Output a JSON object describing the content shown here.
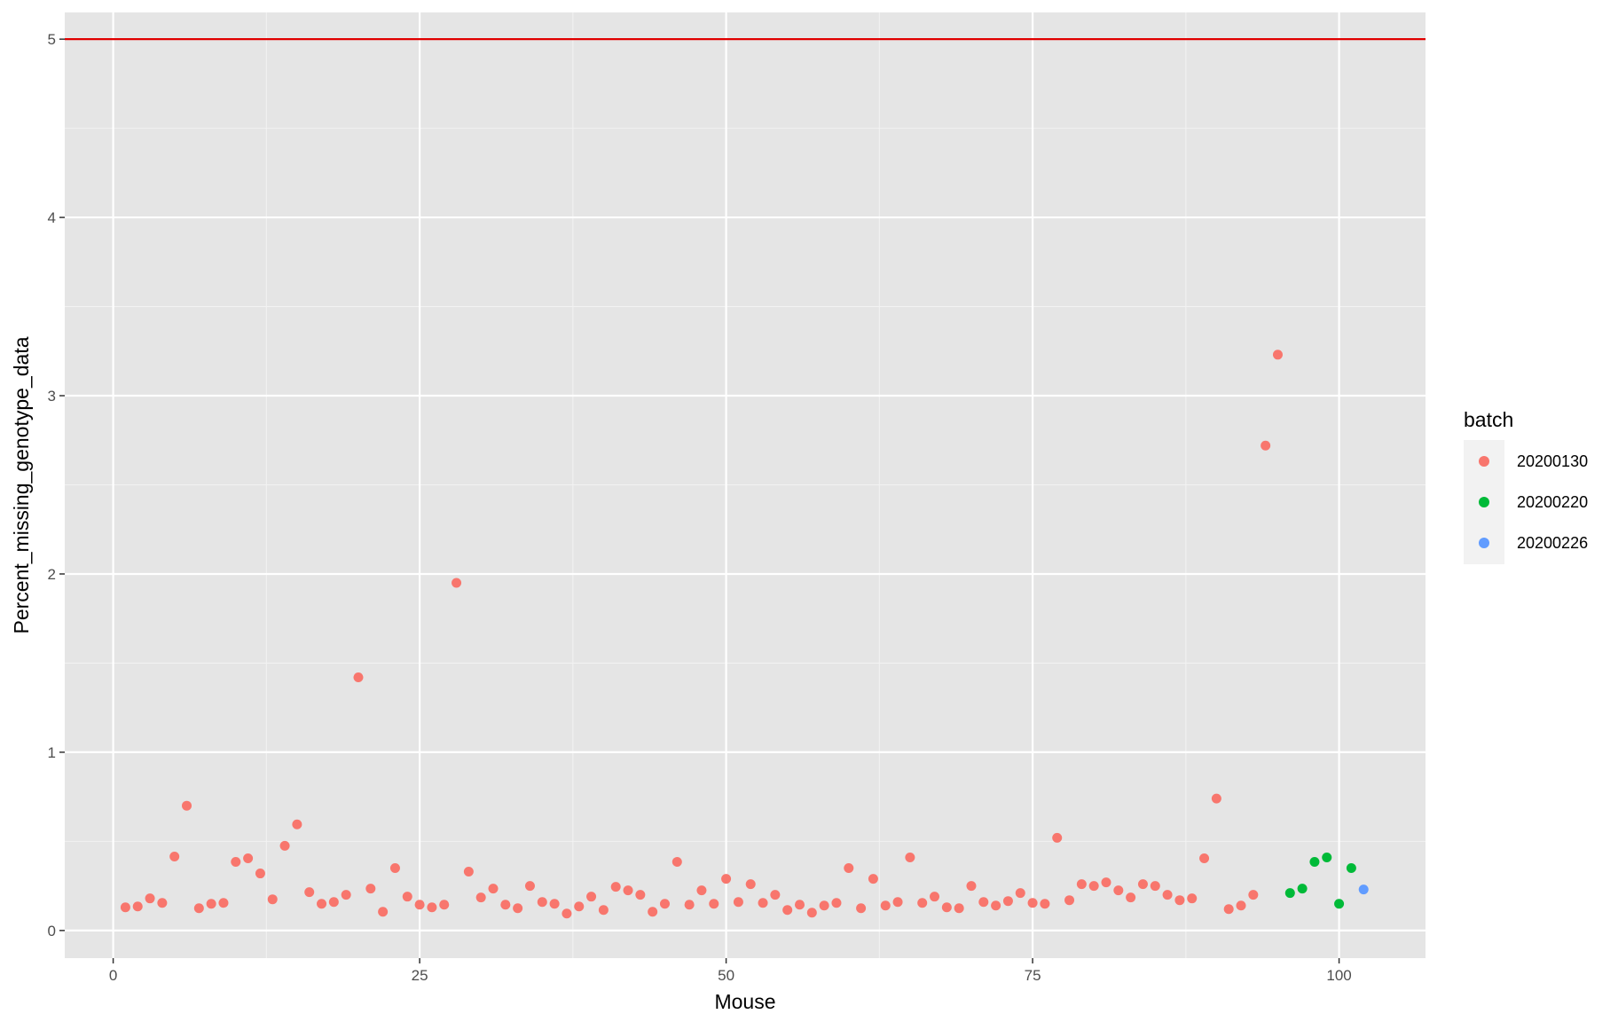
{
  "chart_data": {
    "type": "scatter",
    "xlabel": "Mouse",
    "ylabel": "Percent_missing_genotype_data",
    "xlim": [
      -3.95,
      107.05
    ],
    "ylim": [
      -0.155,
      5.15
    ],
    "x_ticks": [
      0,
      25,
      50,
      75,
      100
    ],
    "y_ticks": [
      0,
      1,
      2,
      3,
      4,
      5
    ],
    "x_tick_labels": [
      "0",
      "25",
      "50",
      "75",
      "100"
    ],
    "y_tick_labels": [
      "0",
      "1",
      "2",
      "3",
      "4",
      "5"
    ],
    "grid": true,
    "hline": {
      "y": 5,
      "color": "#e00000"
    },
    "legend": {
      "title": "batch",
      "position": "right"
    },
    "series": [
      {
        "name": "20200130",
        "color": "#f8766d",
        "x": [
          1,
          2,
          3,
          4,
          5,
          6,
          7,
          8,
          9,
          10,
          11,
          12,
          13,
          14,
          15,
          16,
          17,
          18,
          19,
          20,
          21,
          22,
          23,
          24,
          25,
          26,
          27,
          28,
          29,
          30,
          31,
          32,
          33,
          34,
          35,
          36,
          37,
          38,
          39,
          40,
          41,
          42,
          43,
          44,
          45,
          46,
          47,
          48,
          49,
          50,
          51,
          52,
          53,
          54,
          55,
          56,
          57,
          58,
          59,
          60,
          61,
          62,
          63,
          64,
          65,
          66,
          67,
          68,
          69,
          70,
          71,
          72,
          73,
          74,
          75,
          76,
          77,
          78,
          79,
          80,
          81,
          82,
          83,
          84,
          85,
          86,
          87,
          88,
          89,
          90,
          91,
          92,
          93,
          94,
          95
        ],
        "y": [
          0.13,
          0.135,
          0.18,
          0.155,
          0.415,
          0.7,
          0.125,
          0.15,
          0.155,
          0.385,
          0.405,
          0.32,
          0.175,
          0.475,
          0.595,
          0.215,
          0.15,
          0.16,
          0.2,
          1.42,
          0.235,
          0.105,
          0.35,
          0.19,
          0.145,
          0.13,
          0.145,
          1.95,
          0.33,
          0.185,
          0.235,
          0.145,
          0.125,
          0.25,
          0.16,
          0.15,
          0.095,
          0.135,
          0.19,
          0.115,
          0.245,
          0.225,
          0.2,
          0.105,
          0.15,
          0.385,
          0.145,
          0.225,
          0.15,
          0.29,
          0.16,
          0.26,
          0.155,
          0.2,
          0.115,
          0.145,
          0.1,
          0.14,
          0.155,
          0.35,
          0.125,
          0.29,
          0.14,
          0.16,
          0.41,
          0.155,
          0.19,
          0.13,
          0.125,
          0.25,
          0.16,
          0.14,
          0.165,
          0.21,
          0.155,
          0.15,
          0.52,
          0.17,
          0.26,
          0.25,
          0.27,
          0.225,
          0.185,
          0.26,
          0.25,
          0.2,
          0.17,
          0.18,
          0.405,
          0.74,
          0.12,
          0.14,
          0.2,
          2.72,
          3.23
        ]
      },
      {
        "name": "20200220",
        "color": "#00ba38",
        "x": [
          96,
          97,
          98,
          99,
          100,
          101
        ],
        "y": [
          0.21,
          0.235,
          0.385,
          0.41,
          0.15,
          0.35
        ]
      },
      {
        "name": "20200226",
        "color": "#619cff",
        "x": [
          102
        ],
        "y": [
          0.23
        ]
      }
    ]
  }
}
